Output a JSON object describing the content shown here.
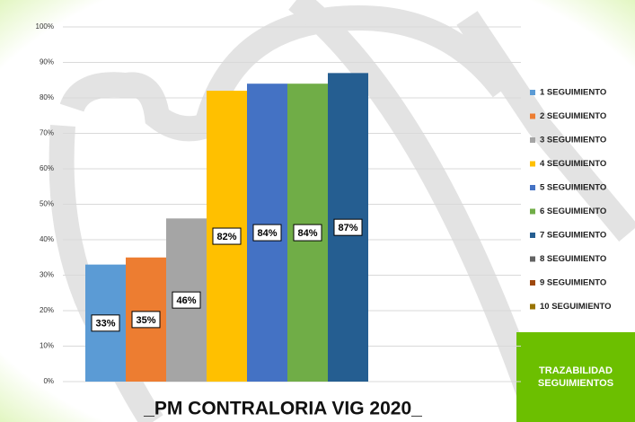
{
  "chart_data": {
    "type": "bar",
    "title": "_PM CONTRALORIA VIG 2020_",
    "ylim": [
      0,
      100
    ],
    "yticks": [
      {
        "value": 0,
        "label": "0%"
      },
      {
        "value": 10,
        "label": "10%"
      },
      {
        "value": 20,
        "label": "20%"
      },
      {
        "value": 30,
        "label": "30%"
      },
      {
        "value": 40,
        "label": "40%"
      },
      {
        "value": 50,
        "label": "50%"
      },
      {
        "value": 60,
        "label": "60%"
      },
      {
        "value": 70,
        "label": "70%"
      },
      {
        "value": 80,
        "label": "80%"
      },
      {
        "value": 90,
        "label": "90%"
      },
      {
        "value": 100,
        "label": "100%"
      }
    ],
    "grid": true,
    "legend": "right",
    "series": [
      {
        "name": "1 SEGUIMIENTO",
        "color": "#5b9bd5",
        "values": [
          33
        ],
        "value_labels": [
          "33%"
        ]
      },
      {
        "name": "2 SEGUIMIENTO",
        "color": "#ed7d31",
        "values": [
          35
        ],
        "value_labels": [
          "35%"
        ]
      },
      {
        "name": "3 SEGUIMIENTO",
        "color": "#a5a5a5",
        "values": [
          46
        ],
        "value_labels": [
          "46%"
        ]
      },
      {
        "name": "4 SEGUIMIENTO",
        "color": "#ffc000",
        "values": [
          82
        ],
        "value_labels": [
          "82%"
        ]
      },
      {
        "name": "5 SEGUIMIENTO",
        "color": "#4472c4",
        "values": [
          84
        ],
        "value_labels": [
          "84%"
        ]
      },
      {
        "name": "6 SEGUIMIENTO",
        "color": "#70ad47",
        "values": [
          84
        ],
        "value_labels": [
          "84%"
        ]
      },
      {
        "name": "7 SEGUIMIENTO",
        "color": "#255e91",
        "values": [
          87
        ],
        "value_labels": [
          "87%"
        ]
      },
      {
        "name": "8 SEGUIMIENTO",
        "color": "#636363",
        "values": [
          null
        ]
      },
      {
        "name": "9 SEGUIMIENTO",
        "color": "#9e480e",
        "values": [
          null
        ]
      },
      {
        "name": "10 SEGUIMIENTO",
        "color": "#997300",
        "values": [
          null
        ]
      }
    ]
  },
  "badge": {
    "lines": [
      "TRAZABILIDAD",
      "SEGUIMIENTOS"
    ]
  }
}
